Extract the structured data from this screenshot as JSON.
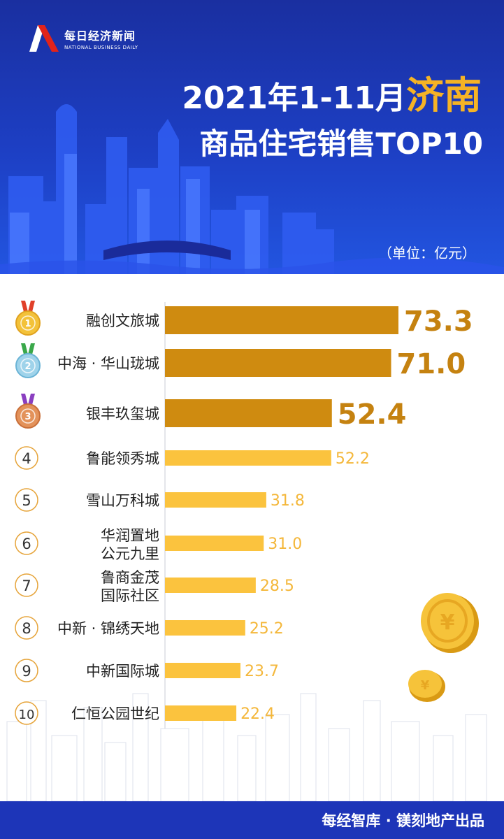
{
  "brand": {
    "name_cn": "每日经济新闻",
    "name_en": "NATIONAL BUSINESS DAILY"
  },
  "title": {
    "line1_prefix": "2021年1-11月",
    "line1_highlight": "济南",
    "line2": "商品住宅销售TOP10"
  },
  "unit": "（单位：亿元）",
  "footer": "每经智库 · 镁刻地产出品",
  "colors": {
    "header": "#1d3fc4",
    "top_bar": "#cf8b10",
    "bar": "#fbc33e",
    "footer": "#1d35b8"
  },
  "chart_data": {
    "type": "bar",
    "orientation": "horizontal",
    "categories": [
      [
        "融创文旅城"
      ],
      [
        "中海 · 华山珑城"
      ],
      [
        "银丰玖玺城"
      ],
      [
        "鲁能领秀城"
      ],
      [
        "雪山万科城"
      ],
      [
        "华润置地",
        "公元九里"
      ],
      [
        "鲁商金茂",
        "国际社区"
      ],
      [
        "中新 · 锦绣天地"
      ],
      [
        "中新国际城"
      ],
      [
        "仁恒公园世纪"
      ]
    ],
    "ranks": [
      "1",
      "2",
      "3",
      "4",
      "5",
      "6",
      "7",
      "8",
      "9",
      "10"
    ],
    "values": [
      73.3,
      71.0,
      52.4,
      52.2,
      31.8,
      31.0,
      28.5,
      25.2,
      23.7,
      22.4
    ],
    "value_labels": [
      "73.3",
      "71.0",
      "52.4",
      "52.2",
      "31.8",
      "31.0",
      "28.5",
      "25.2",
      "23.7",
      "22.4"
    ],
    "xlim": [
      0,
      73.3
    ]
  }
}
